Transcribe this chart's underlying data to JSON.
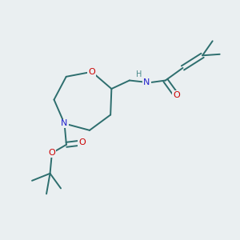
{
  "bg_color": "#eaeff1",
  "bond_color": "#2d6e6e",
  "atom_colors": {
    "O": "#cc0000",
    "N": "#2222cc",
    "H": "#4a8a8a",
    "C": "#2d6e6e"
  }
}
